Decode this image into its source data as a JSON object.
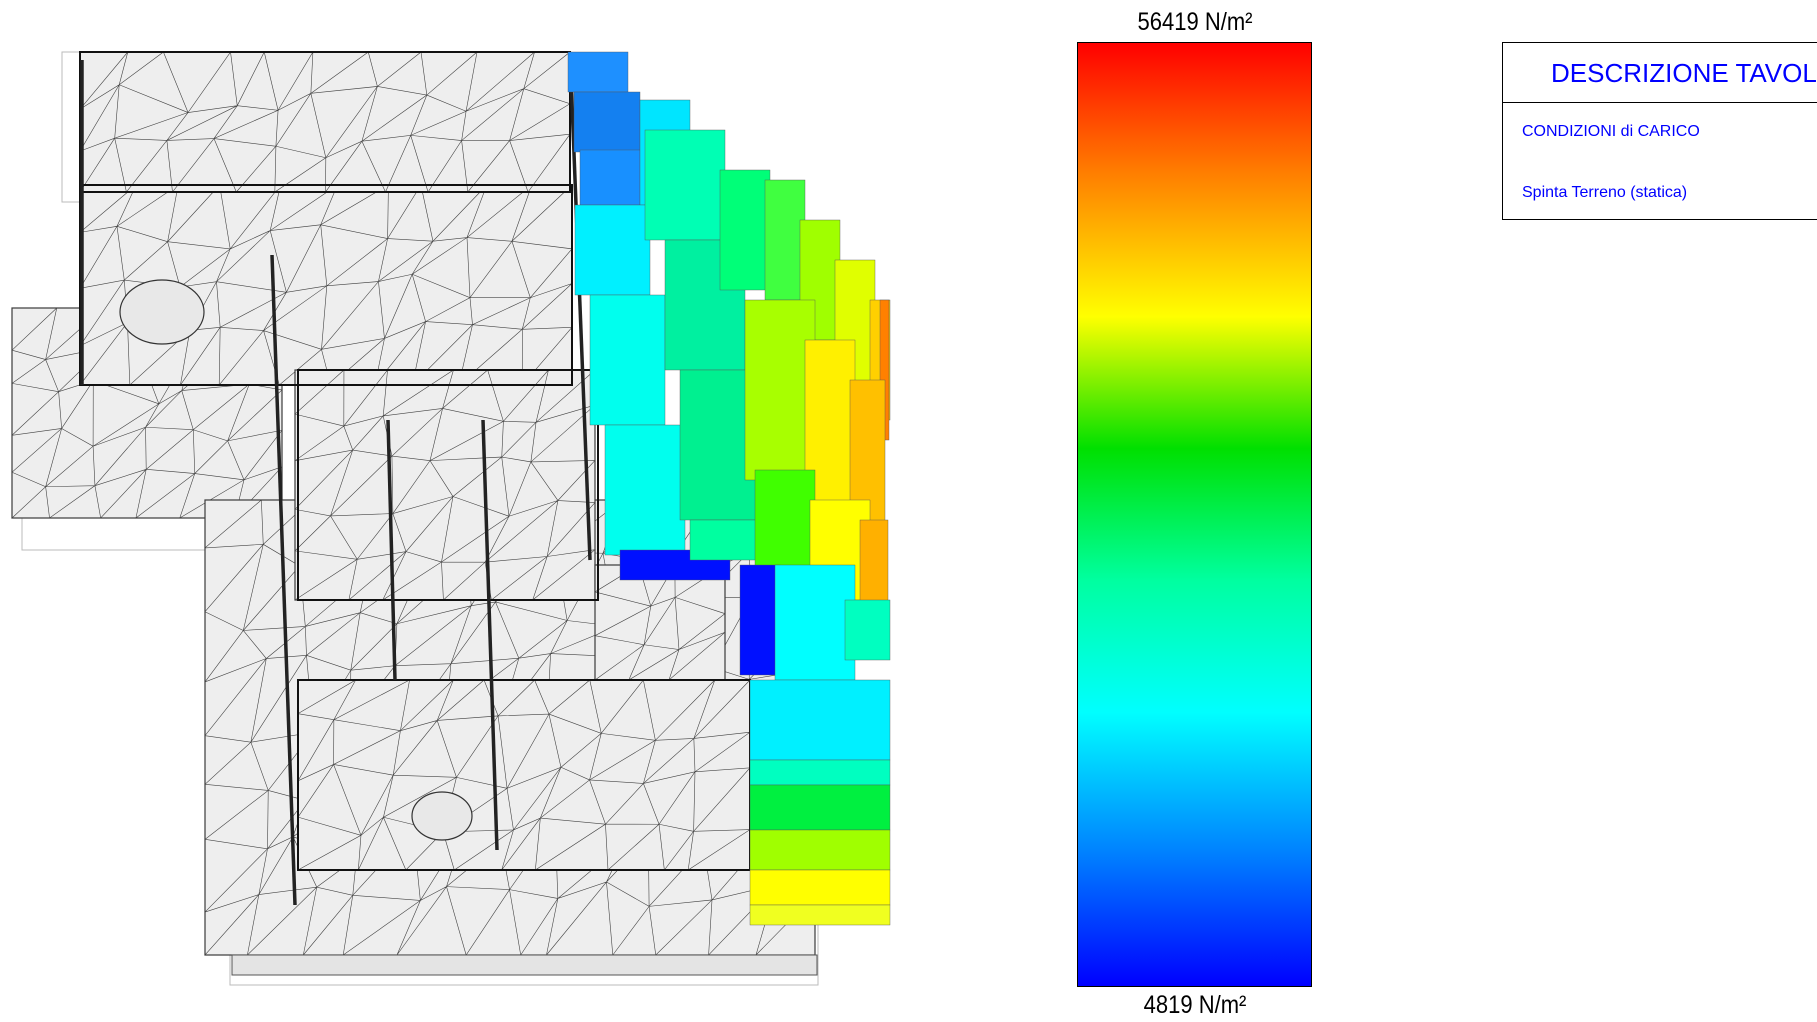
{
  "legend": {
    "max_label": "56419 N/m²",
    "min_label": "4819 N/m²",
    "max_value": 56419,
    "min_value": 4819,
    "unit": "N/m²",
    "gradient_colors": [
      "#ff0000",
      "#ff8000",
      "#ffff00",
      "#00e000",
      "#00ffa0",
      "#00ffff",
      "#0080ff",
      "#0000ff"
    ]
  },
  "description_panel": {
    "title": "DESCRIZIONE TAVOLA",
    "condition_label": "CONDIZIONI di CARICO",
    "load_case": "Spinta Terreno (statica)"
  },
  "model": {
    "mesh_fill": "#eeeeee",
    "mesh_stroke": "#333333"
  }
}
